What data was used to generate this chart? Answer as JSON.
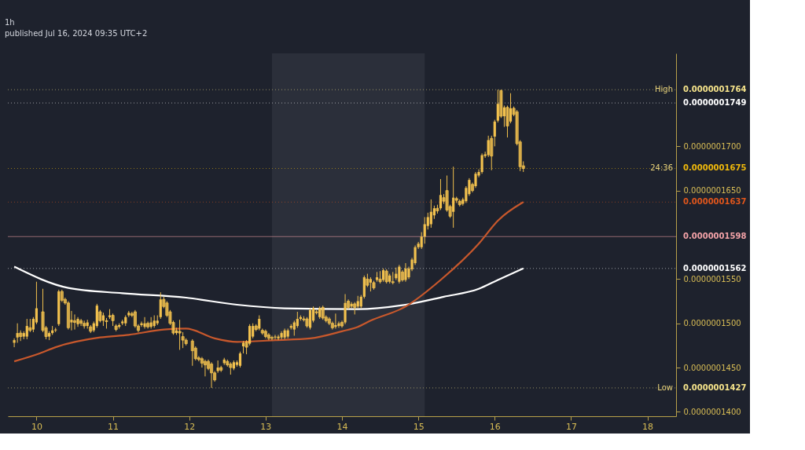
{
  "chart_data": {
    "type": "candlestick",
    "title": "1h",
    "annotations": [
      "published Jul 16, 2024 09:35 UTC+2",
      {
        "text": "High",
        "y": 1.764e-07
      },
      {
        "text": "24:36",
        "y": 1.675e-07
      },
      {
        "text": "Low",
        "y": 1.427e-07
      }
    ],
    "xlim": [
      "2024-07-09T15:00",
      "2024-07-18T09:00"
    ],
    "xticks": [
      {
        "value": "2024-07-10T00:00",
        "label": "10"
      },
      {
        "value": "2024-07-11T00:00",
        "label": "11"
      },
      {
        "value": "2024-07-12T00:00",
        "label": "12"
      },
      {
        "value": "2024-07-13T00:00",
        "label": "13"
      },
      {
        "value": "2024-07-14T00:00",
        "label": "14"
      },
      {
        "value": "2024-07-15T00:00",
        "label": "15"
      },
      {
        "value": "2024-07-16T00:00",
        "label": "16"
      },
      {
        "value": "2024-07-17T00:00",
        "label": "17"
      },
      {
        "value": "2024-07-18T00:00",
        "label": "18"
      }
    ],
    "ylim": [
      1.395e-07,
      1.805e-07
    ],
    "yticks": [
      {
        "value": 1.4e-07,
        "label": "0.0000001400"
      },
      {
        "value": 1.45e-07,
        "label": "0.0000001450"
      },
      {
        "value": 1.5e-07,
        "label": "0.0000001500"
      },
      {
        "value": 1.55e-07,
        "label": "0.0000001550"
      },
      {
        "value": 1.65e-07,
        "label": "0.0000001650"
      },
      {
        "value": 1.7e-07,
        "label": "0.0000001700"
      }
    ],
    "bands": [
      {
        "axis": "x",
        "from": "2024-07-13T02:00",
        "to": "2024-07-15T02:00",
        "color": "#2b2f3a"
      }
    ],
    "ref_lines": [
      {
        "axis": "y",
        "value": 1.764e-07,
        "label": "0.0000001764",
        "color": "#f5e38a",
        "line_style": "dotted"
      },
      {
        "axis": "y",
        "value": 1.749e-07,
        "label": "0.0000001749",
        "color": "#ffffff",
        "line_style": "dotted"
      },
      {
        "axis": "y",
        "value": 1.675e-07,
        "label": "0.0000001675",
        "color": "#f0b90b",
        "line_style": "dotted"
      },
      {
        "axis": "y",
        "value": 1.637e-07,
        "label": "0.0000001637",
        "color": "#e0561c",
        "line_style": "dotted"
      },
      {
        "axis": "y",
        "value": 1.598e-07,
        "label": "0.0000001598",
        "color": "#f4a3a8",
        "line_style": "solid"
      },
      {
        "axis": "y",
        "value": 1.562e-07,
        "label": "0.0000001562",
        "color": "#ffffff",
        "line_style": "dotted"
      },
      {
        "axis": "y",
        "value": 1.427e-07,
        "label": "0.0000001427",
        "color": "#f5e38a",
        "line_style": "dotted"
      }
    ],
    "series": [
      {
        "type": "candlestick",
        "color": "#f2c14e",
        "x": [
          "2024-07-09T17:00",
          "2024-07-09T18:00",
          "2024-07-09T19:00",
          "2024-07-09T20:00",
          "2024-07-09T21:00",
          "2024-07-09T22:00",
          "2024-07-09T23:00",
          "2024-07-10T00:00",
          "2024-07-10T02:00",
          "2024-07-10T03:00",
          "2024-07-10T04:00",
          "2024-07-10T05:00",
          "2024-07-10T06:00",
          "2024-07-10T07:00",
          "2024-07-10T08:00",
          "2024-07-10T09:00",
          "2024-07-10T10:00",
          "2024-07-10T11:00",
          "2024-07-10T12:00",
          "2024-07-10T13:00",
          "2024-07-10T14:00",
          "2024-07-10T15:00",
          "2024-07-10T16:00",
          "2024-07-10T17:00",
          "2024-07-10T18:00",
          "2024-07-10T19:00",
          "2024-07-10T20:00",
          "2024-07-10T21:00",
          "2024-07-10T22:00",
          "2024-07-10T23:00",
          "2024-07-11T00:00",
          "2024-07-11T01:00",
          "2024-07-11T02:00",
          "2024-07-11T03:00",
          "2024-07-11T04:00",
          "2024-07-11T05:00",
          "2024-07-11T06:00",
          "2024-07-11T07:00",
          "2024-07-11T08:00",
          "2024-07-11T09:00",
          "2024-07-11T10:00",
          "2024-07-11T11:00",
          "2024-07-11T12:00",
          "2024-07-11T13:00",
          "2024-07-11T14:00",
          "2024-07-11T15:00",
          "2024-07-11T16:00",
          "2024-07-11T17:00",
          "2024-07-11T18:00",
          "2024-07-11T19:00",
          "2024-07-11T20:00",
          "2024-07-11T21:00",
          "2024-07-11T22:00",
          "2024-07-11T23:00",
          "2024-07-12T01:00",
          "2024-07-12T02:00",
          "2024-07-12T03:00",
          "2024-07-12T04:00",
          "2024-07-12T05:00",
          "2024-07-12T06:00",
          "2024-07-12T07:00",
          "2024-07-12T08:00",
          "2024-07-12T09:00",
          "2024-07-12T10:00",
          "2024-07-12T11:00",
          "2024-07-12T12:00",
          "2024-07-12T13:00",
          "2024-07-12T14:00",
          "2024-07-12T15:00",
          "2024-07-12T16:00",
          "2024-07-12T17:00",
          "2024-07-12T18:00",
          "2024-07-12T19:00",
          "2024-07-12T20:00",
          "2024-07-12T21:00",
          "2024-07-12T22:00",
          "2024-07-12T23:00",
          "2024-07-13T00:00",
          "2024-07-13T01:00",
          "2024-07-13T02:00",
          "2024-07-13T03:00",
          "2024-07-13T04:00",
          "2024-07-13T05:00",
          "2024-07-13T06:00",
          "2024-07-13T07:00",
          "2024-07-13T08:00",
          "2024-07-13T09:00",
          "2024-07-13T10:00",
          "2024-07-13T11:00",
          "2024-07-13T12:00",
          "2024-07-13T13:00",
          "2024-07-13T14:00",
          "2024-07-13T15:00",
          "2024-07-13T16:00",
          "2024-07-13T17:00",
          "2024-07-13T18:00",
          "2024-07-13T19:00",
          "2024-07-13T20:00",
          "2024-07-13T21:00",
          "2024-07-13T22:00",
          "2024-07-13T23:00",
          "2024-07-14T00:00",
          "2024-07-14T01:00",
          "2024-07-14T02:00",
          "2024-07-14T03:00",
          "2024-07-14T04:00",
          "2024-07-14T05:00",
          "2024-07-14T06:00",
          "2024-07-14T07:00",
          "2024-07-14T08:00",
          "2024-07-14T09:00",
          "2024-07-14T10:00",
          "2024-07-14T11:00",
          "2024-07-14T12:00",
          "2024-07-14T13:00",
          "2024-07-14T14:00",
          "2024-07-14T15:00",
          "2024-07-14T16:00",
          "2024-07-14T17:00",
          "2024-07-14T18:00",
          "2024-07-14T19:00",
          "2024-07-14T20:00",
          "2024-07-14T21:00",
          "2024-07-14T22:00",
          "2024-07-14T23:00",
          "2024-07-15T00:00",
          "2024-07-15T01:00",
          "2024-07-15T02:00",
          "2024-07-15T03:00",
          "2024-07-15T04:00",
          "2024-07-15T05:00",
          "2024-07-15T06:00",
          "2024-07-15T07:00",
          "2024-07-15T08:00",
          "2024-07-15T09:00",
          "2024-07-15T10:00",
          "2024-07-15T11:00",
          "2024-07-15T12:00",
          "2024-07-15T13:00",
          "2024-07-15T14:00",
          "2024-07-15T15:00",
          "2024-07-15T16:00",
          "2024-07-15T17:00",
          "2024-07-15T18:00",
          "2024-07-15T19:00",
          "2024-07-15T20:00",
          "2024-07-15T21:00",
          "2024-07-15T22:00",
          "2024-07-15T23:00",
          "2024-07-16T00:00",
          "2024-07-16T01:00",
          "2024-07-16T02:00",
          "2024-07-16T03:00",
          "2024-07-16T04:00",
          "2024-07-16T05:00",
          "2024-07-16T06:00",
          "2024-07-16T07:00",
          "2024-07-16T08:00",
          "2024-07-16T09:00"
        ],
        "ohlc": [
          [
            1.478e-07,
            1.483e-07,
            1.473e-07,
            1.481e-07
          ],
          [
            1.484e-07,
            1.5e-07,
            1.478e-07,
            1.489e-07
          ],
          [
            1.489e-07,
            1.492e-07,
            1.48e-07,
            1.485e-07
          ],
          [
            1.485e-07,
            1.491e-07,
            1.482e-07,
            1.489e-07
          ],
          [
            1.485e-07,
            1.505e-07,
            1.482e-07,
            1.497e-07
          ],
          [
            1.495e-07,
            1.505e-07,
            1.49e-07,
            1.492e-07
          ],
          [
            1.493e-07,
            1.507e-07,
            1.49e-07,
            1.505e-07
          ],
          [
            1.501e-07,
            1.547e-07,
            1.499e-07,
            1.517e-07
          ],
          [
            1.513e-07,
            1.539e-07,
            1.49e-07,
            1.492e-07
          ],
          [
            1.495e-07,
            1.497e-07,
            1.482e-07,
            1.485e-07
          ],
          [
            1.485e-07,
            1.491e-07,
            1.481e-07,
            1.489e-07
          ],
          [
            1.489e-07,
            1.497e-07,
            1.487e-07,
            1.492e-07
          ],
          [
            1.492e-07,
            1.495e-07,
            1.49e-07,
            1.493e-07
          ],
          [
            1.499e-07,
            1.538e-07,
            1.497e-07,
            1.536e-07
          ],
          [
            1.536e-07,
            1.538e-07,
            1.524e-07,
            1.526e-07
          ],
          [
            1.527e-07,
            1.529e-07,
            1.521e-07,
            1.523e-07
          ],
          [
            1.523e-07,
            1.525e-07,
            1.493e-07,
            1.495e-07
          ],
          [
            1.501e-07,
            1.514e-07,
            1.492e-07,
            1.504e-07
          ],
          [
            1.503e-07,
            1.51e-07,
            1.493e-07,
            1.501e-07
          ],
          [
            1.499e-07,
            1.507e-07,
            1.496e-07,
            1.505e-07
          ],
          [
            1.503e-07,
            1.505e-07,
            1.497e-07,
            1.5e-07
          ],
          [
            1.5e-07,
            1.503e-07,
            1.494e-07,
            1.497e-07
          ],
          [
            1.497e-07,
            1.504e-07,
            1.494e-07,
            1.501e-07
          ],
          [
            1.496e-07,
            1.498e-07,
            1.489e-07,
            1.491e-07
          ],
          [
            1.492e-07,
            1.502e-07,
            1.49e-07,
            1.5e-07
          ],
          [
            1.497e-07,
            1.522e-07,
            1.495e-07,
            1.52e-07
          ],
          [
            1.513e-07,
            1.515e-07,
            1.501e-07,
            1.503e-07
          ],
          [
            1.503e-07,
            1.512e-07,
            1.497e-07,
            1.509e-07
          ],
          [
            1.503e-07,
            1.506e-07,
            1.494e-07,
            1.502e-07
          ],
          [
            1.507e-07,
            1.516e-07,
            1.505e-07,
            1.509e-07
          ],
          [
            1.509e-07,
            1.511e-07,
            1.497e-07,
            1.503e-07
          ],
          [
            1.497e-07,
            1.499e-07,
            1.491e-07,
            1.493e-07
          ],
          [
            1.496e-07,
            1.5e-07,
            1.494e-07,
            1.498e-07
          ],
          [
            1.5e-07,
            1.504e-07,
            1.498e-07,
            1.502e-07
          ],
          [
            1.5e-07,
            1.509e-07,
            1.497e-07,
            1.507e-07
          ],
          [
            1.509e-07,
            1.514e-07,
            1.507e-07,
            1.512e-07
          ],
          [
            1.511e-07,
            1.513e-07,
            1.507e-07,
            1.509e-07
          ],
          [
            1.513e-07,
            1.515e-07,
            1.495e-07,
            1.497e-07
          ],
          [
            1.497e-07,
            1.499e-07,
            1.49e-07,
            1.492e-07
          ],
          [
            1.498e-07,
            1.502e-07,
            1.496e-07,
            1.5e-07
          ],
          [
            1.496e-07,
            1.507e-07,
            1.494e-07,
            1.5e-07
          ],
          [
            1.5e-07,
            1.502e-07,
            1.494e-07,
            1.496e-07
          ],
          [
            1.496e-07,
            1.507e-07,
            1.494e-07,
            1.501e-07
          ],
          [
            1.497e-07,
            1.509e-07,
            1.495e-07,
            1.503e-07
          ],
          [
            1.5e-07,
            1.509e-07,
            1.498e-07,
            1.503e-07
          ],
          [
            1.507e-07,
            1.535e-07,
            1.505e-07,
            1.527e-07
          ],
          [
            1.527e-07,
            1.53e-07,
            1.517e-07,
            1.519e-07
          ],
          [
            1.523e-07,
            1.525e-07,
            1.507e-07,
            1.509e-07
          ],
          [
            1.513e-07,
            1.515e-07,
            1.498e-07,
            1.5e-07
          ],
          [
            1.501e-07,
            1.503e-07,
            1.487e-07,
            1.489e-07
          ],
          [
            1.489e-07,
            1.495e-07,
            1.487e-07,
            1.492e-07
          ],
          [
            1.491e-07,
            1.504e-07,
            1.47e-07,
            1.489e-07
          ],
          [
            1.485e-07,
            1.49e-07,
            1.472e-07,
            1.481e-07
          ],
          [
            1.481e-07,
            1.483e-07,
            1.475e-07,
            1.477e-07
          ],
          [
            1.48e-07,
            1.482e-07,
            1.452e-07,
            1.469e-07
          ],
          [
            1.472e-07,
            1.474e-07,
            1.458e-07,
            1.46e-07
          ],
          [
            1.461e-07,
            1.463e-07,
            1.457e-07,
            1.459e-07
          ],
          [
            1.46e-07,
            1.462e-07,
            1.45e-07,
            1.455e-07
          ],
          [
            1.457e-07,
            1.459e-07,
            1.44e-07,
            1.453e-07
          ],
          [
            1.457e-07,
            1.459e-07,
            1.447e-07,
            1.449e-07
          ],
          [
            1.454e-07,
            1.456e-07,
            1.427e-07,
            1.444e-07
          ],
          [
            1.444e-07,
            1.446e-07,
            1.434e-07,
            1.436e-07
          ],
          [
            1.446e-07,
            1.458e-07,
            1.444e-07,
            1.45e-07
          ],
          [
            1.45e-07,
            1.452e-07,
            1.445e-07,
            1.447e-07
          ],
          [
            1.455e-07,
            1.461e-07,
            1.453e-07,
            1.459e-07
          ],
          [
            1.457e-07,
            1.459e-07,
            1.451e-07,
            1.453e-07
          ],
          [
            1.454e-07,
            1.456e-07,
            1.442e-07,
            1.45e-07
          ],
          [
            1.449e-07,
            1.458e-07,
            1.447e-07,
            1.456e-07
          ],
          [
            1.453e-07,
            1.458e-07,
            1.451e-07,
            1.456e-07
          ],
          [
            1.452e-07,
            1.468e-07,
            1.45e-07,
            1.466e-07
          ],
          [
            1.474e-07,
            1.48e-07,
            1.466e-07,
            1.478e-07
          ],
          [
            1.479e-07,
            1.481e-07,
            1.465e-07,
            1.473e-07
          ],
          [
            1.477e-07,
            1.499e-07,
            1.475e-07,
            1.497e-07
          ],
          [
            1.485e-07,
            1.5e-07,
            1.483e-07,
            1.497e-07
          ],
          [
            1.497e-07,
            1.499e-07,
            1.491e-07,
            1.493e-07
          ],
          [
            1.494e-07,
            1.509e-07,
            1.492e-07,
            1.505e-07
          ],
          [
            1.492e-07,
            1.494e-07,
            1.487e-07,
            1.489e-07
          ],
          [
            1.491e-07,
            1.493e-07,
            1.483e-07,
            1.485e-07
          ],
          [
            1.487e-07,
            1.489e-07,
            1.481e-07,
            1.483e-07
          ],
          [
            1.484e-07,
            1.486e-07,
            1.481e-07,
            1.483e-07
          ],
          [
            1.484e-07,
            1.487e-07,
            1.482e-07,
            1.485e-07
          ],
          [
            1.483e-07,
            1.487e-07,
            1.481e-07,
            1.485e-07
          ],
          [
            1.484e-07,
            1.491e-07,
            1.482e-07,
            1.489e-07
          ],
          [
            1.484e-07,
            1.494e-07,
            1.482e-07,
            1.492e-07
          ],
          [
            1.485e-07,
            1.494e-07,
            1.483e-07,
            1.492e-07
          ],
          [
            1.495e-07,
            1.499e-07,
            1.493e-07,
            1.497e-07
          ],
          [
            1.493e-07,
            1.503e-07,
            1.486e-07,
            1.501e-07
          ],
          [
            1.497e-07,
            1.513e-07,
            1.495e-07,
            1.505e-07
          ],
          [
            1.505e-07,
            1.509e-07,
            1.503e-07,
            1.507e-07
          ],
          [
            1.505e-07,
            1.508e-07,
            1.502e-07,
            1.504e-07
          ],
          [
            1.505e-07,
            1.507e-07,
            1.495e-07,
            1.497e-07
          ],
          [
            1.495e-07,
            1.517e-07,
            1.493e-07,
            1.515e-07
          ],
          [
            1.503e-07,
            1.519e-07,
            1.501e-07,
            1.517e-07
          ],
          [
            1.513e-07,
            1.515e-07,
            1.51e-07,
            1.512e-07
          ],
          [
            1.507e-07,
            1.519e-07,
            1.505e-07,
            1.517e-07
          ],
          [
            1.518e-07,
            1.52e-07,
            1.504e-07,
            1.506e-07
          ],
          [
            1.507e-07,
            1.509e-07,
            1.501e-07,
            1.503e-07
          ],
          [
            1.505e-07,
            1.507e-07,
            1.498e-07,
            1.5e-07
          ],
          [
            1.5e-07,
            1.502e-07,
            1.493e-07,
            1.495e-07
          ],
          [
            1.496e-07,
            1.511e-07,
            1.494e-07,
            1.498e-07
          ],
          [
            1.497e-07,
            1.502e-07,
            1.495e-07,
            1.5e-07
          ],
          [
            1.501e-07,
            1.503e-07,
            1.495e-07,
            1.497e-07
          ],
          [
            1.501e-07,
            1.533e-07,
            1.499e-07,
            1.523e-07
          ],
          [
            1.525e-07,
            1.527e-07,
            1.516e-07,
            1.518e-07
          ],
          [
            1.519e-07,
            1.524e-07,
            1.517e-07,
            1.522e-07
          ],
          [
            1.522e-07,
            1.524e-07,
            1.51e-07,
            1.518e-07
          ],
          [
            1.519e-07,
            1.531e-07,
            1.517e-07,
            1.525e-07
          ],
          [
            1.519e-07,
            1.532e-07,
            1.517e-07,
            1.53e-07
          ],
          [
            1.53e-07,
            1.554e-07,
            1.528e-07,
            1.552e-07
          ],
          [
            1.55e-07,
            1.556e-07,
            1.541e-07,
            1.543e-07
          ],
          [
            1.546e-07,
            1.552e-07,
            1.536e-07,
            1.55e-07
          ],
          [
            1.546e-07,
            1.548e-07,
            1.538e-07,
            1.54e-07
          ],
          [
            1.549e-07,
            1.558e-07,
            1.547e-07,
            1.552e-07
          ],
          [
            1.55e-07,
            1.559e-07,
            1.545e-07,
            1.547e-07
          ],
          [
            1.549e-07,
            1.562e-07,
            1.547e-07,
            1.56e-07
          ],
          [
            1.559e-07,
            1.561e-07,
            1.545e-07,
            1.547e-07
          ],
          [
            1.547e-07,
            1.556e-07,
            1.545e-07,
            1.554e-07
          ],
          [
            1.547e-07,
            1.558e-07,
            1.544e-07,
            1.546e-07
          ],
          [
            1.551e-07,
            1.563e-07,
            1.549e-07,
            1.556e-07
          ],
          [
            1.547e-07,
            1.566e-07,
            1.545e-07,
            1.564e-07
          ],
          [
            1.558e-07,
            1.56e-07,
            1.547e-07,
            1.549e-07
          ],
          [
            1.549e-07,
            1.568e-07,
            1.547e-07,
            1.562e-07
          ],
          [
            1.552e-07,
            1.564e-07,
            1.55e-07,
            1.562e-07
          ],
          [
            1.561e-07,
            1.574e-07,
            1.559e-07,
            1.572e-07
          ],
          [
            1.568e-07,
            1.588e-07,
            1.566e-07,
            1.586e-07
          ],
          [
            1.586e-07,
            1.592e-07,
            1.584e-07,
            1.59e-07
          ],
          [
            1.586e-07,
            1.603e-07,
            1.584e-07,
            1.598e-07
          ],
          [
            1.598e-07,
            1.62e-07,
            1.59e-07,
            1.612e-07
          ],
          [
            1.61e-07,
            1.625e-07,
            1.606e-07,
            1.62e-07
          ],
          [
            1.612e-07,
            1.64e-07,
            1.608e-07,
            1.626e-07
          ],
          [
            1.622e-07,
            1.633e-07,
            1.618e-07,
            1.63e-07
          ],
          [
            1.63e-07,
            1.634e-07,
            1.624e-07,
            1.627e-07
          ],
          [
            1.63e-07,
            1.663e-07,
            1.628e-07,
            1.645e-07
          ],
          [
            1.642e-07,
            1.646e-07,
            1.635e-07,
            1.638e-07
          ],
          [
            1.65e-07,
            1.667e-07,
            1.626e-07,
            1.628e-07
          ],
          [
            1.632e-07,
            1.634e-07,
            1.619e-07,
            1.621e-07
          ],
          [
            1.626e-07,
            1.677e-07,
            1.608e-07,
            1.642e-07
          ],
          [
            1.641e-07,
            1.643e-07,
            1.636e-07,
            1.639e-07
          ],
          [
            1.638e-07,
            1.64e-07,
            1.632e-07,
            1.634e-07
          ],
          [
            1.635e-07,
            1.642e-07,
            1.633e-07,
            1.64e-07
          ],
          [
            1.638e-07,
            1.655e-07,
            1.636e-07,
            1.653e-07
          ],
          [
            1.646e-07,
            1.664e-07,
            1.644e-07,
            1.662e-07
          ],
          [
            1.657e-07,
            1.659e-07,
            1.648e-07,
            1.65e-07
          ],
          [
            1.655e-07,
            1.671e-07,
            1.653e-07,
            1.669e-07
          ],
          [
            1.667e-07,
            1.674e-07,
            1.665e-07,
            1.671e-07
          ],
          [
            1.671e-07,
            1.692e-07,
            1.669e-07,
            1.69e-07
          ],
          [
            1.689e-07,
            1.694e-07,
            1.687e-07,
            1.691e-07
          ],
          [
            1.69e-07,
            1.712e-07,
            1.688e-07,
            1.707e-07
          ],
          [
            1.709e-07,
            1.712e-07,
            1.673e-07,
            1.689e-07
          ],
          [
            1.711e-07,
            1.73e-07,
            1.7e-07,
            1.728e-07
          ],
          [
            1.729e-07,
            1.764e-07,
            1.727e-07,
            1.748e-07
          ],
          [
            1.763e-07,
            1.764e-07,
            1.732e-07,
            1.734e-07
          ],
          [
            1.734e-07,
            1.746e-07,
            1.722e-07,
            1.744e-07
          ],
          [
            1.744e-07,
            1.746e-07,
            1.71e-07,
            1.723e-07
          ],
          [
            1.728e-07,
            1.76e-07,
            1.726e-07,
            1.743e-07
          ],
          [
            1.743e-07,
            1.745e-07,
            1.734e-07,
            1.736e-07
          ],
          [
            1.739e-07,
            1.741e-07,
            1.701e-07,
            1.703e-07
          ],
          [
            1.705e-07,
            1.707e-07,
            1.672e-07,
            1.677e-07
          ],
          [
            1.678e-07,
            1.683e-07,
            1.671e-07,
            1.675e-07
          ]
        ]
      },
      {
        "type": "line",
        "color": "#ffffff",
        "x": [
          "2024-07-09T17:00",
          "2024-07-10T10:00",
          "2024-07-11T03:00",
          "2024-07-11T23:00",
          "2024-07-12T15:00",
          "2024-07-13T06:00",
          "2024-07-14T05:00",
          "2024-07-14T20:00",
          "2024-07-15T08:00",
          "2024-07-15T19:00",
          "2024-07-16T01:00",
          "2024-07-16T09:00"
        ],
        "values": [
          1.564e-07,
          1.54e-07,
          1.534e-07,
          1.529e-07,
          1.521e-07,
          1.517e-07,
          1.516e-07,
          1.521e-07,
          1.53e-07,
          1.539e-07,
          1.549e-07,
          1.562e-07
        ]
      },
      {
        "type": "line",
        "color": "#c8582c",
        "x": [
          "2024-07-09T17:00",
          "2024-07-10T01:00",
          "2024-07-10T06:00",
          "2024-07-10T20:00",
          "2024-07-11T05:00",
          "2024-07-11T16:00",
          "2024-07-11T23:00",
          "2024-07-12T08:00",
          "2024-07-12T15:00",
          "2024-07-13T03:00",
          "2024-07-13T14:00",
          "2024-07-14T00:00",
          "2024-07-14T05:00",
          "2024-07-14T09:00",
          "2024-07-14T20:00",
          "2024-07-15T07:00",
          "2024-07-15T19:00",
          "2024-07-16T01:00",
          "2024-07-16T09:00"
        ],
        "values": [
          1.457e-07,
          1.466e-07,
          1.473e-07,
          1.484e-07,
          1.487e-07,
          1.493e-07,
          1.494e-07,
          1.483e-07,
          1.479e-07,
          1.481e-07,
          1.483e-07,
          1.491e-07,
          1.496e-07,
          1.503e-07,
          1.519e-07,
          1.549e-07,
          1.59e-07,
          1.616e-07,
          1.637e-07
        ]
      }
    ]
  }
}
